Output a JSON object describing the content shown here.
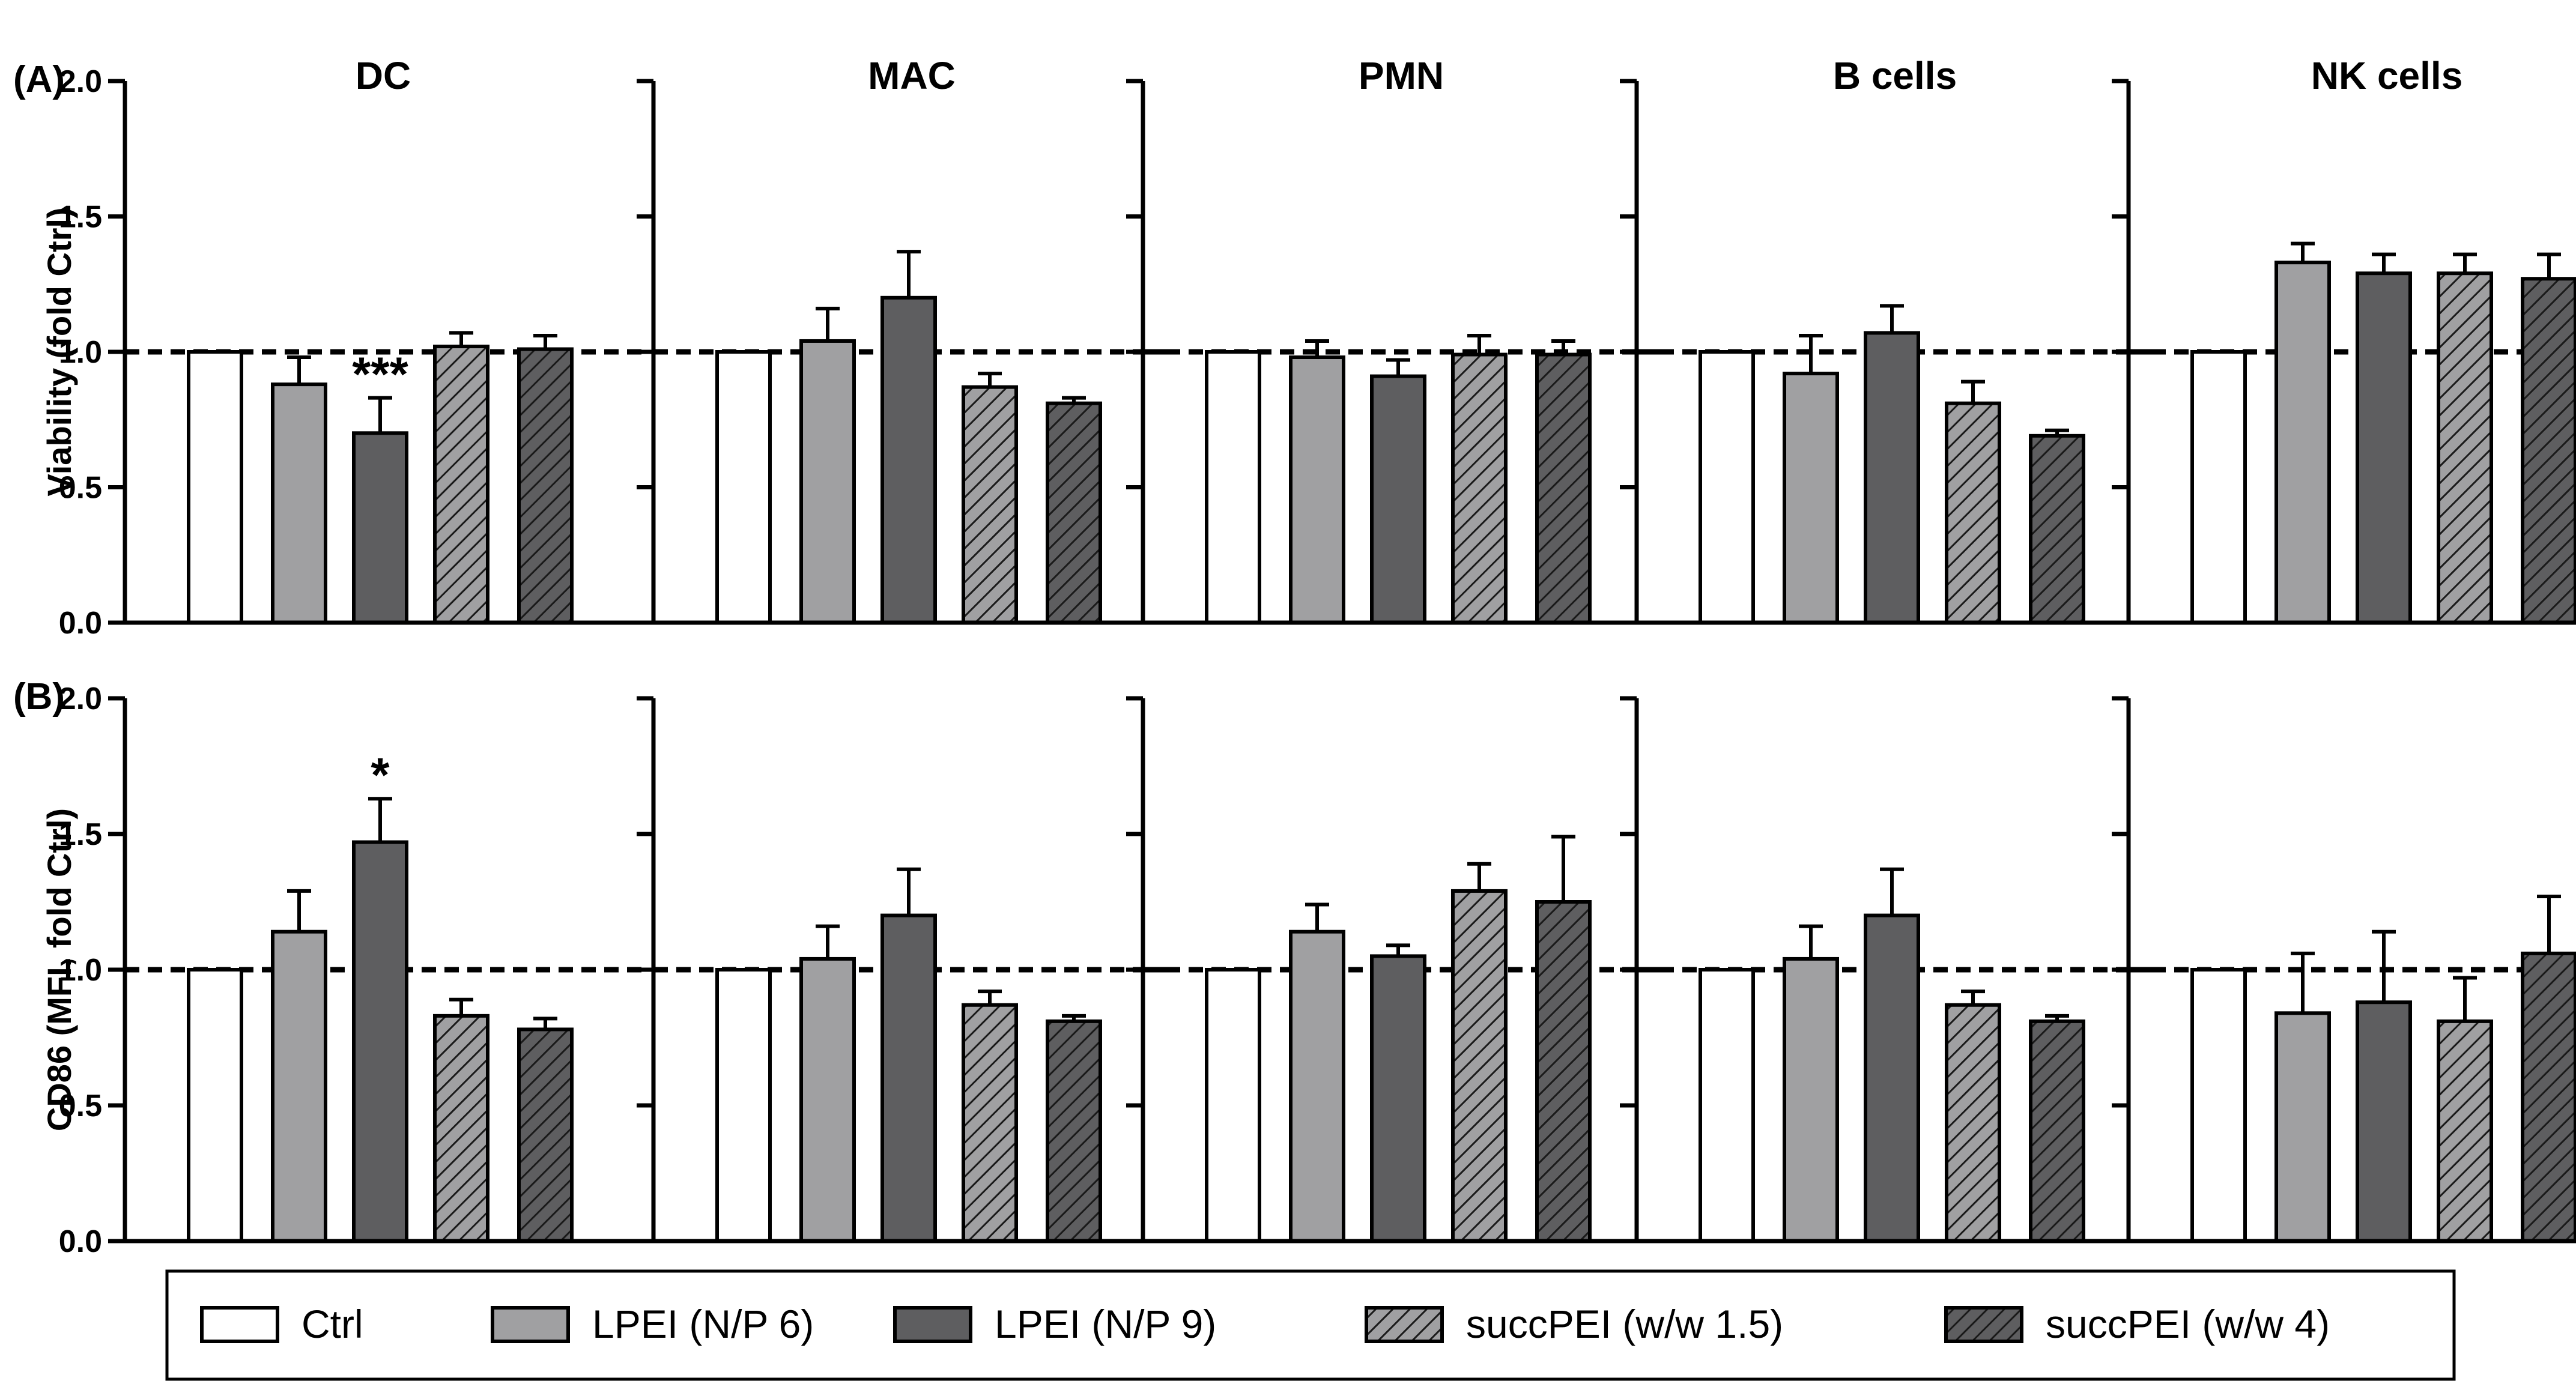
{
  "figure": {
    "series": [
      {
        "name": "Ctrl",
        "fill": "#ffffff",
        "hatch": false
      },
      {
        "name": "LPEI (N/P 6)",
        "fill": "#a0a0a2",
        "hatch": false
      },
      {
        "name": "LPEI (N/P 9)",
        "fill": "#5e5e60",
        "hatch": false
      },
      {
        "name": "succPEI (w/w 1.5)",
        "fill": "#a0a0a2",
        "hatch": true
      },
      {
        "name": "succPEI (w/w 4)",
        "fill": "#5e5e60",
        "hatch": true
      }
    ],
    "colors": {
      "axis": "#000000",
      "bar_outline": "#000000",
      "reference_line": "#000000"
    }
  },
  "chart_data": [
    {
      "type": "bar",
      "panel": "(A)",
      "ylabel": "Viability (fold Ctrl)",
      "ylim": [
        0,
        2.0
      ],
      "yticks": [
        "0.0",
        "0.5",
        "1.0",
        "1.5",
        "2.0"
      ],
      "reference_line": 1.0,
      "series_names": [
        "Ctrl",
        "LPEI (N/P 6)",
        "LPEI (N/P 9)",
        "succPEI (w/w 1.5)",
        "succPEI (w/w 4)"
      ],
      "subplots": [
        {
          "title": "DC",
          "values": [
            1.0,
            0.88,
            0.7,
            1.02,
            1.01
          ],
          "errors": [
            0,
            0.1,
            0.13,
            0.05,
            0.05
          ],
          "annotations": [
            "",
            "",
            "***",
            "",
            ""
          ]
        },
        {
          "title": "MAC",
          "values": [
            1.0,
            1.04,
            1.2,
            0.87,
            0.81
          ],
          "errors": [
            0,
            0.12,
            0.17,
            0.05,
            0.02
          ],
          "annotations": [
            "",
            "",
            "",
            "",
            ""
          ]
        },
        {
          "title": "PMN",
          "values": [
            1.0,
            0.98,
            0.91,
            0.99,
            0.99
          ],
          "errors": [
            0,
            0.06,
            0.06,
            0.07,
            0.05
          ],
          "annotations": [
            "",
            "",
            "",
            "",
            ""
          ]
        },
        {
          "title": "B cells",
          "values": [
            1.0,
            0.92,
            1.07,
            0.81,
            0.69
          ],
          "errors": [
            0,
            0.14,
            0.1,
            0.08,
            0.02
          ],
          "annotations": [
            "",
            "",
            "",
            "",
            ""
          ]
        },
        {
          "title": "NK cells",
          "values": [
            1.0,
            1.33,
            1.29,
            1.29,
            1.27
          ],
          "errors": [
            0,
            0.07,
            0.07,
            0.07,
            0.09
          ],
          "annotations": [
            "",
            "",
            "",
            "",
            ""
          ]
        }
      ]
    },
    {
      "type": "bar",
      "panel": "(B)",
      "ylabel": "CD86 (MFI, fold Ctrl)",
      "ylim": [
        0,
        2.0
      ],
      "yticks": [
        "0.0",
        "0.5",
        "1.0",
        "1.5",
        "2.0"
      ],
      "reference_line": 1.0,
      "series_names": [
        "Ctrl",
        "LPEI (N/P 6)",
        "LPEI (N/P 9)",
        "succPEI (w/w 1.5)",
        "succPEI (w/w 4)"
      ],
      "subplots": [
        {
          "title": "",
          "values": [
            1.0,
            1.14,
            1.47,
            0.83,
            0.78
          ],
          "errors": [
            0,
            0.15,
            0.16,
            0.06,
            0.04
          ],
          "annotations": [
            "",
            "",
            "*",
            "",
            ""
          ]
        },
        {
          "title": "",
          "values": [
            1.0,
            1.04,
            1.2,
            0.87,
            0.81
          ],
          "errors": [
            0,
            0.12,
            0.17,
            0.05,
            0.02
          ],
          "annotations": [
            "",
            "",
            "",
            "",
            ""
          ]
        },
        {
          "title": "",
          "values": [
            1.0,
            1.14,
            1.05,
            1.29,
            1.25
          ],
          "errors": [
            0,
            0.1,
            0.04,
            0.1,
            0.24
          ],
          "annotations": [
            "",
            "",
            "",
            "",
            ""
          ]
        },
        {
          "title": "",
          "values": [
            1.0,
            1.04,
            1.2,
            0.87,
            0.81
          ],
          "errors": [
            0,
            0.12,
            0.17,
            0.05,
            0.02
          ],
          "annotations": [
            "",
            "",
            "",
            "",
            ""
          ]
        },
        {
          "title": "",
          "values": [
            1.0,
            0.84,
            0.88,
            0.81,
            1.06
          ],
          "errors": [
            0,
            0.22,
            0.26,
            0.16,
            0.21
          ],
          "annotations": [
            "",
            "",
            "",
            "",
            ""
          ]
        }
      ]
    }
  ]
}
